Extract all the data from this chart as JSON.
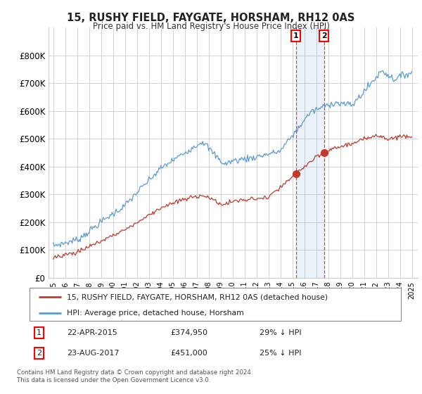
{
  "title": "15, RUSHY FIELD, FAYGATE, HORSHAM, RH12 0AS",
  "subtitle": "Price paid vs. HM Land Registry's House Price Index (HPI)",
  "ylim": [
    0,
    900000
  ],
  "yticks": [
    0,
    100000,
    200000,
    300000,
    400000,
    500000,
    600000,
    700000,
    800000
  ],
  "ytick_labels": [
    "£0",
    "£100K",
    "£200K",
    "£300K",
    "£400K",
    "£500K",
    "£600K",
    "£700K",
    "£800K"
  ],
  "hpi_color": "#5b9bd5",
  "price_color": "#c0392b",
  "marker1_date": 2015.3,
  "marker1_price": 374950,
  "marker1_label": "22-APR-2015",
  "marker1_amount": "£374,950",
  "marker1_pct": "29% ↓ HPI",
  "marker2_date": 2017.65,
  "marker2_price": 451000,
  "marker2_label": "23-AUG-2017",
  "marker2_amount": "£451,000",
  "marker2_pct": "25% ↓ HPI",
  "legend_property": "15, RUSHY FIELD, FAYGATE, HORSHAM, RH12 0AS (detached house)",
  "legend_hpi": "HPI: Average price, detached house, Horsham",
  "footer": "Contains HM Land Registry data © Crown copyright and database right 2024.\nThis data is licensed under the Open Government Licence v3.0.",
  "background_color": "#ffffff",
  "grid_color": "#cccccc"
}
